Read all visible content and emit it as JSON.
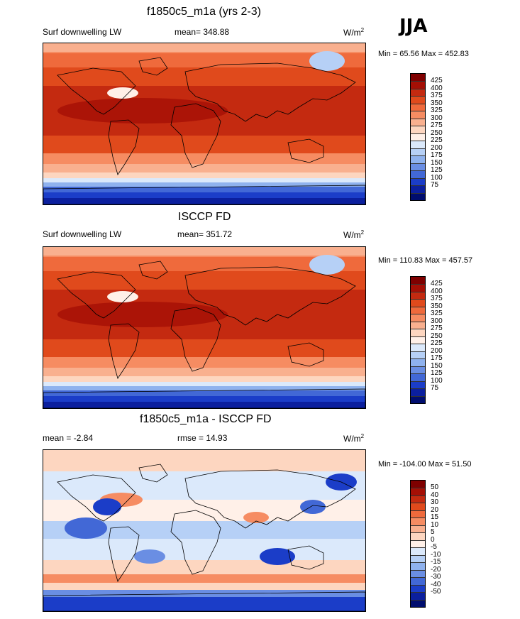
{
  "season": "JJA",
  "panels": [
    {
      "title": "f1850c5_m1a (yrs 2-3)",
      "left_label": "Surf downwelling LW",
      "center_label": "mean= 348.88",
      "units": "W/m",
      "units_sup": "2",
      "minmax": "Min =  65.56 Max = 452.83",
      "colorbar": {
        "labels": [
          "425",
          "400",
          "375",
          "350",
          "325",
          "300",
          "275",
          "250",
          "225",
          "200",
          "175",
          "150",
          "125",
          "100",
          "75"
        ],
        "colors": [
          "#7f0000",
          "#a50f05",
          "#c42a10",
          "#e04a1c",
          "#ef6a3c",
          "#f68c62",
          "#f9b08f",
          "#fdd6c0",
          "#fff0e8",
          "#dbe9fb",
          "#b6d0f6",
          "#8fb2ee",
          "#6a8ee3",
          "#4268d6",
          "#1b3dc8",
          "#0b1f9e",
          "#000d6e"
        ],
        "map_style": "warm"
      }
    },
    {
      "title": "ISCCP FD",
      "left_label": "Surf downwelling LW",
      "center_label": "mean= 351.72",
      "units": "W/m",
      "units_sup": "2",
      "minmax": "Min = 110.83 Max = 457.57",
      "colorbar": {
        "labels": [
          "425",
          "400",
          "375",
          "350",
          "325",
          "300",
          "275",
          "250",
          "225",
          "200",
          "175",
          "150",
          "125",
          "100",
          "75"
        ],
        "colors": [
          "#7f0000",
          "#a50f05",
          "#c42a10",
          "#e04a1c",
          "#ef6a3c",
          "#f68c62",
          "#f9b08f",
          "#fdd6c0",
          "#fff0e8",
          "#dbe9fb",
          "#b6d0f6",
          "#8fb2ee",
          "#6a8ee3",
          "#4268d6",
          "#1b3dc8",
          "#0b1f9e",
          "#000d6e"
        ],
        "map_style": "warm"
      }
    },
    {
      "title": "f1850c5_m1a - ISCCP FD",
      "left_label": "mean =  -2.84",
      "center_label": "rmse =  14.93",
      "units": "W/m",
      "units_sup": "2",
      "minmax": "Min = -104.00 Max =  51.50",
      "colorbar": {
        "labels": [
          "50",
          "40",
          "30",
          "20",
          "15",
          "10",
          "5",
          "0",
          "-5",
          "-10",
          "-15",
          "-20",
          "-30",
          "-40",
          "-50"
        ],
        "colors": [
          "#7f0000",
          "#a50f05",
          "#c42a10",
          "#e04a1c",
          "#ef6a3c",
          "#f68c62",
          "#f9b08f",
          "#fdd6c0",
          "#fff0e8",
          "#dbe9fb",
          "#b6d0f6",
          "#8fb2ee",
          "#6a8ee3",
          "#4268d6",
          "#1b3dc8",
          "#0b1f9e",
          "#000d6e"
        ],
        "map_style": "diff"
      }
    }
  ]
}
